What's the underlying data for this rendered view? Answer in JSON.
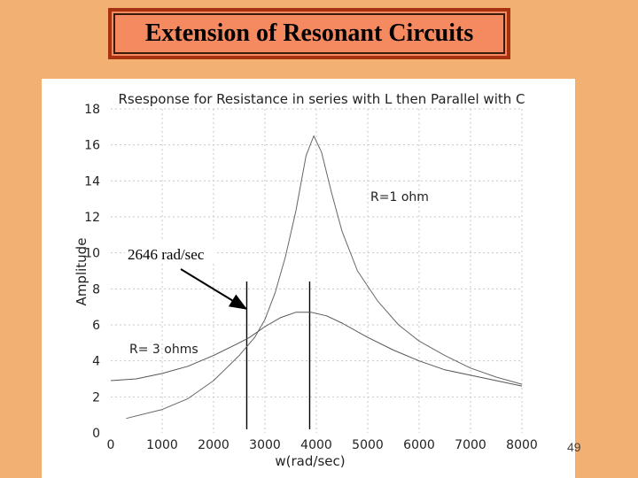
{
  "slide": {
    "title": "Extension of Resonant Circuits",
    "page_number": "49"
  },
  "chart_data": {
    "type": "line",
    "title": "Rsesponse for Resistance in series with L then Parallel with C",
    "xlabel": "w(rad/sec)",
    "ylabel": "Amplitude",
    "xlim": [
      0,
      8000
    ],
    "ylim": [
      0,
      18
    ],
    "x_ticks": [
      "0",
      "1000",
      "2000",
      "3000",
      "4000",
      "5000",
      "6000",
      "7000",
      "8000"
    ],
    "y_ticks": [
      "0",
      "2",
      "4",
      "6",
      "8",
      "10",
      "12",
      "14",
      "16",
      "18"
    ],
    "grid": true,
    "series": [
      {
        "name": "R=1 ohm",
        "x": [
          300,
          1000,
          1500,
          2000,
          2500,
          2800,
          3000,
          3200,
          3400,
          3600,
          3800,
          3950,
          4100,
          4300,
          4500,
          4800,
          5200,
          5600,
          6000,
          6500,
          7000,
          7500,
          8000
        ],
        "values": [
          0.8,
          1.3,
          1.9,
          2.9,
          4.3,
          5.3,
          6.3,
          7.8,
          9.8,
          12.3,
          15.4,
          16.5,
          15.6,
          13.3,
          11.2,
          9.0,
          7.3,
          6.0,
          5.1,
          4.3,
          3.6,
          3.1,
          2.7
        ]
      },
      {
        "name": "R= 3 ohms",
        "x": [
          0,
          500,
          1000,
          1500,
          2000,
          2500,
          2700,
          3000,
          3300,
          3600,
          3900,
          4200,
          4500,
          5000,
          5500,
          6000,
          6500,
          7000,
          7500,
          8000
        ],
        "values": [
          2.9,
          3.0,
          3.3,
          3.7,
          4.3,
          5.0,
          5.3,
          5.9,
          6.4,
          6.7,
          6.7,
          6.5,
          6.1,
          5.3,
          4.6,
          4.0,
          3.5,
          3.2,
          2.9,
          2.6
        ]
      }
    ],
    "vertical_markers": [
      2646,
      3870
    ],
    "annotations": [
      {
        "text": "2646 rad/sec",
        "target_x": 2646,
        "target_y": 6.8
      }
    ],
    "series_labels": [
      "R=1 ohm",
      "R= 3 ohms"
    ]
  }
}
